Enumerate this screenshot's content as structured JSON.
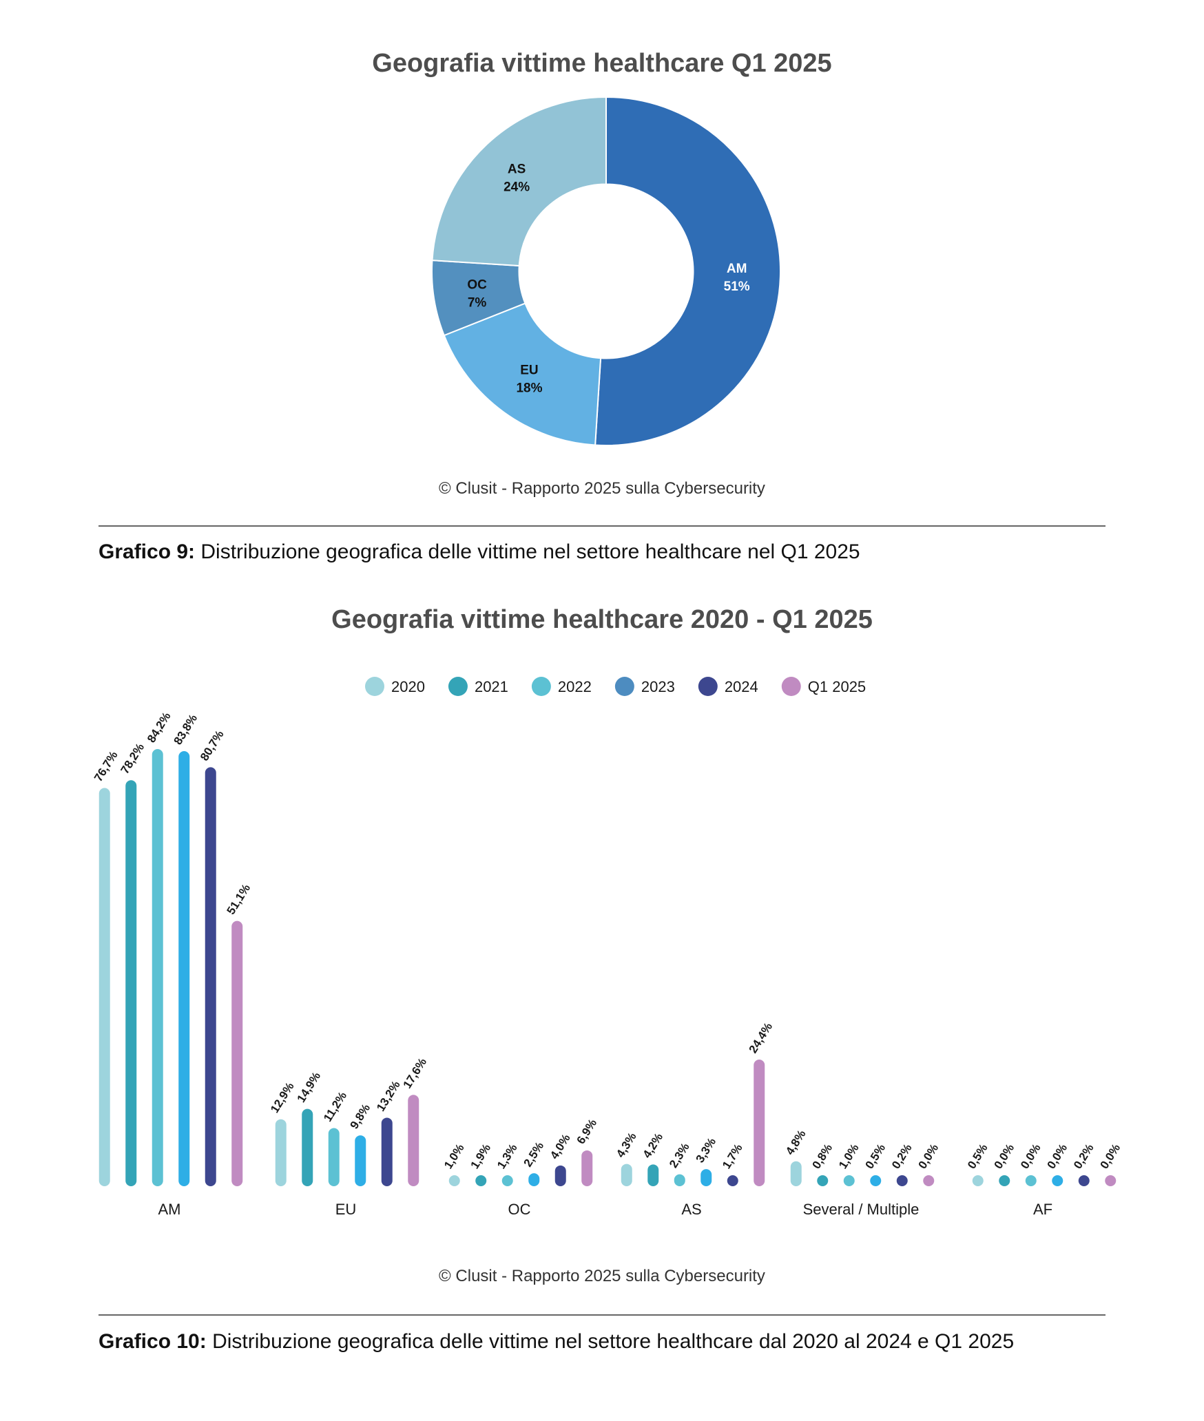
{
  "chart_data": [
    {
      "type": "pie",
      "title": "Geografia vittime healthcare Q1 2025",
      "credit": "© Clusit - Rapporto 2025 sulla Cybersecurity",
      "slices": [
        {
          "name": "AM",
          "value": 51,
          "label": "51%",
          "color": "#2f6db5",
          "text_color": "#ffffff"
        },
        {
          "name": "EU",
          "value": 18,
          "label": "18%",
          "color": "#62b1e3",
          "text_color": "#111111"
        },
        {
          "name": "OC",
          "value": 7,
          "label": "7%",
          "color": "#5390bf",
          "text_color": "#111111"
        },
        {
          "name": "AS",
          "value": 24,
          "label": "24%",
          "color": "#92c3d6",
          "text_color": "#111111"
        }
      ],
      "hole": 0.5
    },
    {
      "type": "bar",
      "title": "Geografia vittime healthcare 2020 - Q1 2025",
      "credit": "© Clusit - Rapporto 2025 sulla Cybersecurity",
      "categories": [
        "AM",
        "EU",
        "OC",
        "AS",
        "Several / Multiple",
        "AF"
      ],
      "series": [
        {
          "name": "2020",
          "color": "#9dd4dd",
          "values": [
            76.7,
            12.9,
            1.0,
            4.3,
            4.8,
            0.5
          ],
          "labels": [
            "76,7%",
            "12,9%",
            "1,0%",
            "4,3%",
            "4,8%",
            "0,5%"
          ]
        },
        {
          "name": "2021",
          "color": "#34a4b7",
          "values": [
            78.2,
            14.9,
            1.9,
            4.2,
            0.8,
            0.0
          ],
          "labels": [
            "78,2%",
            "14,9%",
            "1,9%",
            "4,2%",
            "0,8%",
            "0,0%"
          ]
        },
        {
          "name": "2022",
          "color": "#5cc1d3",
          "values": [
            84.2,
            11.2,
            1.3,
            2.3,
            1.0,
            0.0
          ],
          "labels": [
            "84,2%",
            "11,2%",
            "1,3%",
            "2,3%",
            "1,0%",
            "0,0%"
          ]
        },
        {
          "name": "2023",
          "color": "#2eaee6",
          "legend_color": "#4d8cc0",
          "values": [
            83.8,
            9.8,
            2.5,
            3.3,
            0.5,
            0.0
          ],
          "labels": [
            "83,8%",
            "9,8%",
            "2,5%",
            "3,3%",
            "0,5%",
            "0,0%"
          ]
        },
        {
          "name": "2024",
          "color": "#3d478f",
          "values": [
            80.7,
            13.2,
            4.0,
            1.7,
            0.2,
            0.2
          ],
          "labels": [
            "80,7%",
            "13,2%",
            "4,0%",
            "1,7%",
            "0,2%",
            "0,2%"
          ]
        },
        {
          "name": "Q1 2025",
          "color": "#c08bc1",
          "values": [
            51.1,
            17.6,
            6.9,
            24.4,
            0.0,
            0.0
          ],
          "labels": [
            "51,1%",
            "17,6%",
            "6,9%",
            "24,4%",
            "0,0%",
            "0,0%"
          ]
        }
      ],
      "ylim": [
        0,
        90
      ],
      "legend": "top"
    }
  ],
  "captions": [
    {
      "bold": "Grafico 9:",
      "text": " Distribuzione geografica delle vittime nel settore healthcare nel Q1 2025"
    },
    {
      "bold": "Grafico 10:",
      "text": " Distribuzione geografica delle vittime nel settore healthcare dal 2020 al  2024 e Q1 2025"
    }
  ]
}
